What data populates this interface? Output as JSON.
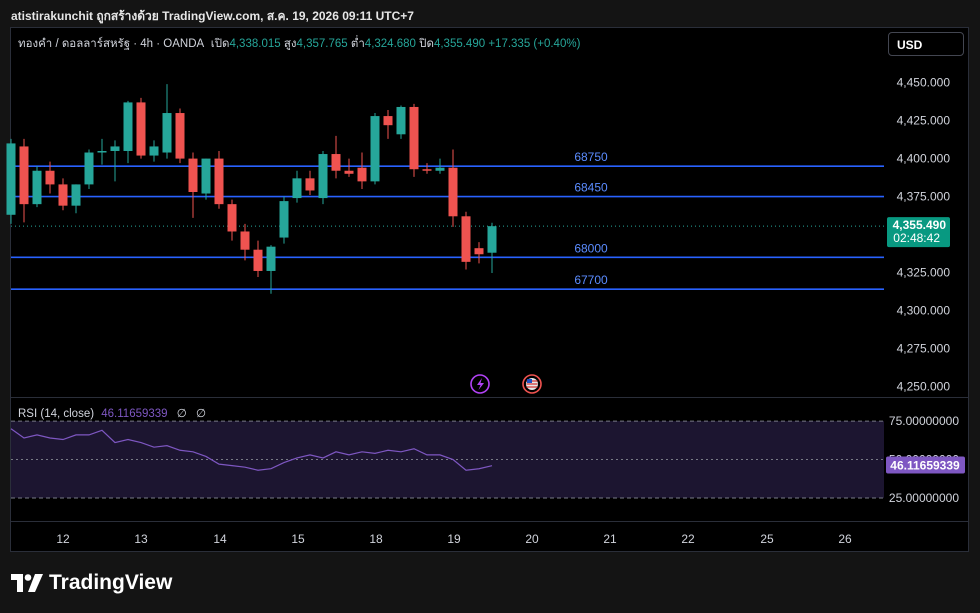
{
  "caption": "atistirakunchit ถูกสร้างด้วย TradingView.com, ส.ค. 19, 2026 09:11 UTC+7",
  "legend": {
    "symbol": "ทองคำ / ดอลลาร์สหรัฐ · 4h · OANDA",
    "open_label": "เปิด",
    "open": "4,338.015",
    "high_label": "สูง",
    "high": "4,357.765",
    "low_label": "ต่ำ",
    "low": "4,324.680",
    "close_label": "ปิด",
    "close": "4,355.490",
    "change": "+17.335 (+0.40%)"
  },
  "currency": "USD",
  "rsi": {
    "label": "RSI (14, close)",
    "value": "46.11659339",
    "extra1": "∅",
    "extra2": "∅"
  },
  "brand": "TradingView",
  "colors": {
    "up": "#26a69a",
    "down": "#ef5350",
    "level_line": "#2962ff",
    "level_text": "#5b8cff",
    "rsi_line": "#7e57c2",
    "rsi_band": "#1c1530"
  },
  "chart_data": {
    "type": "candlestick",
    "y_ticks": [
      "4,450.000",
      "4,425.000",
      "4,400.000",
      "4,375.000",
      "4,350.000",
      "4,325.000",
      "4,300.000",
      "4,275.000",
      "4,250.000"
    ],
    "y_tick_values": [
      4450,
      4425,
      4400,
      4375,
      4350,
      4325,
      4300,
      4275,
      4250
    ],
    "ylim": [
      4243,
      4486
    ],
    "x_ticks": [
      "12",
      "13",
      "14",
      "15",
      "18",
      "19",
      "20",
      "21",
      "22",
      "25",
      "26"
    ],
    "last_price_label": "4,355.490",
    "countdown": "02:48:42",
    "last_price": 4355.49,
    "levels": [
      {
        "label": "68750",
        "value": 4395
      },
      {
        "label": "68450",
        "value": 4375
      },
      {
        "label": "68000",
        "value": 4335
      },
      {
        "label": "67700",
        "value": 4314
      }
    ],
    "candles": [
      {
        "o": 4363,
        "h": 4413,
        "l": 4357,
        "c": 4410
      },
      {
        "o": 4408,
        "h": 4413,
        "l": 4358,
        "c": 4370
      },
      {
        "o": 4370,
        "h": 4395,
        "l": 4368,
        "c": 4392
      },
      {
        "o": 4392,
        "h": 4398,
        "l": 4377,
        "c": 4383
      },
      {
        "o": 4383,
        "h": 4387,
        "l": 4366,
        "c": 4369
      },
      {
        "o": 4369,
        "h": 4383,
        "l": 4364,
        "c": 4383
      },
      {
        "o": 4383,
        "h": 4406,
        "l": 4380,
        "c": 4404
      },
      {
        "o": 4404,
        "h": 4413,
        "l": 4396,
        "c": 4405
      },
      {
        "o": 4405,
        "h": 4412,
        "l": 4385,
        "c": 4408
      },
      {
        "o": 4405,
        "h": 4438,
        "l": 4397,
        "c": 4437
      },
      {
        "o": 4437,
        "h": 4440,
        "l": 4400,
        "c": 4402
      },
      {
        "o": 4402,
        "h": 4412,
        "l": 4398,
        "c": 4408
      },
      {
        "o": 4404,
        "h": 4449,
        "l": 4400,
        "c": 4430
      },
      {
        "o": 4430,
        "h": 4433,
        "l": 4397,
        "c": 4400
      },
      {
        "o": 4400,
        "h": 4404,
        "l": 4361,
        "c": 4378
      },
      {
        "o": 4377,
        "h": 4400,
        "l": 4373,
        "c": 4400
      },
      {
        "o": 4400,
        "h": 4405,
        "l": 4367,
        "c": 4370
      },
      {
        "o": 4370,
        "h": 4373,
        "l": 4346,
        "c": 4352
      },
      {
        "o": 4352,
        "h": 4357,
        "l": 4333,
        "c": 4340
      },
      {
        "o": 4340,
        "h": 4346,
        "l": 4322,
        "c": 4326
      },
      {
        "o": 4326,
        "h": 4343,
        "l": 4311,
        "c": 4342
      },
      {
        "o": 4348,
        "h": 4375,
        "l": 4344,
        "c": 4372
      },
      {
        "o": 4374,
        "h": 4392,
        "l": 4371,
        "c": 4387
      },
      {
        "o": 4387,
        "h": 4392,
        "l": 4376,
        "c": 4379
      },
      {
        "o": 4374,
        "h": 4405,
        "l": 4370,
        "c": 4403
      },
      {
        "o": 4403,
        "h": 4415,
        "l": 4387,
        "c": 4392
      },
      {
        "o": 4392,
        "h": 4400,
        "l": 4388,
        "c": 4390
      },
      {
        "o": 4394,
        "h": 4404,
        "l": 4380,
        "c": 4385
      },
      {
        "o": 4385,
        "h": 4430,
        "l": 4383,
        "c": 4428
      },
      {
        "o": 4428,
        "h": 4432,
        "l": 4413,
        "c": 4422
      },
      {
        "o": 4416,
        "h": 4435,
        "l": 4413,
        "c": 4434
      },
      {
        "o": 4434,
        "h": 4436,
        "l": 4388,
        "c": 4393
      },
      {
        "o": 4393,
        "h": 4397,
        "l": 4390,
        "c": 4392
      },
      {
        "o": 4392,
        "h": 4400,
        "l": 4390,
        "c": 4394
      },
      {
        "o": 4394,
        "h": 4406,
        "l": 4355,
        "c": 4362
      },
      {
        "o": 4362,
        "h": 4365,
        "l": 4327,
        "c": 4332
      },
      {
        "o": 4341,
        "h": 4345,
        "l": 4331,
        "c": 4337
      },
      {
        "o": 4338.015,
        "h": 4357.765,
        "l": 4324.68,
        "c": 4355.49
      }
    ],
    "rsi": {
      "y_ticks": [
        "75.00000000",
        "50.00000000",
        "25.00000000"
      ],
      "y_tick_values": [
        75,
        50,
        25
      ],
      "ylim": [
        10,
        90
      ],
      "values": [
        70,
        64,
        66,
        64,
        63,
        66,
        66,
        69,
        61,
        63,
        61,
        58,
        59,
        56,
        55,
        52,
        47,
        46,
        45,
        43,
        44,
        48,
        51,
        53,
        51,
        55,
        53,
        55,
        54,
        56,
        55,
        57,
        53,
        53,
        50,
        43,
        44,
        46
      ]
    }
  }
}
